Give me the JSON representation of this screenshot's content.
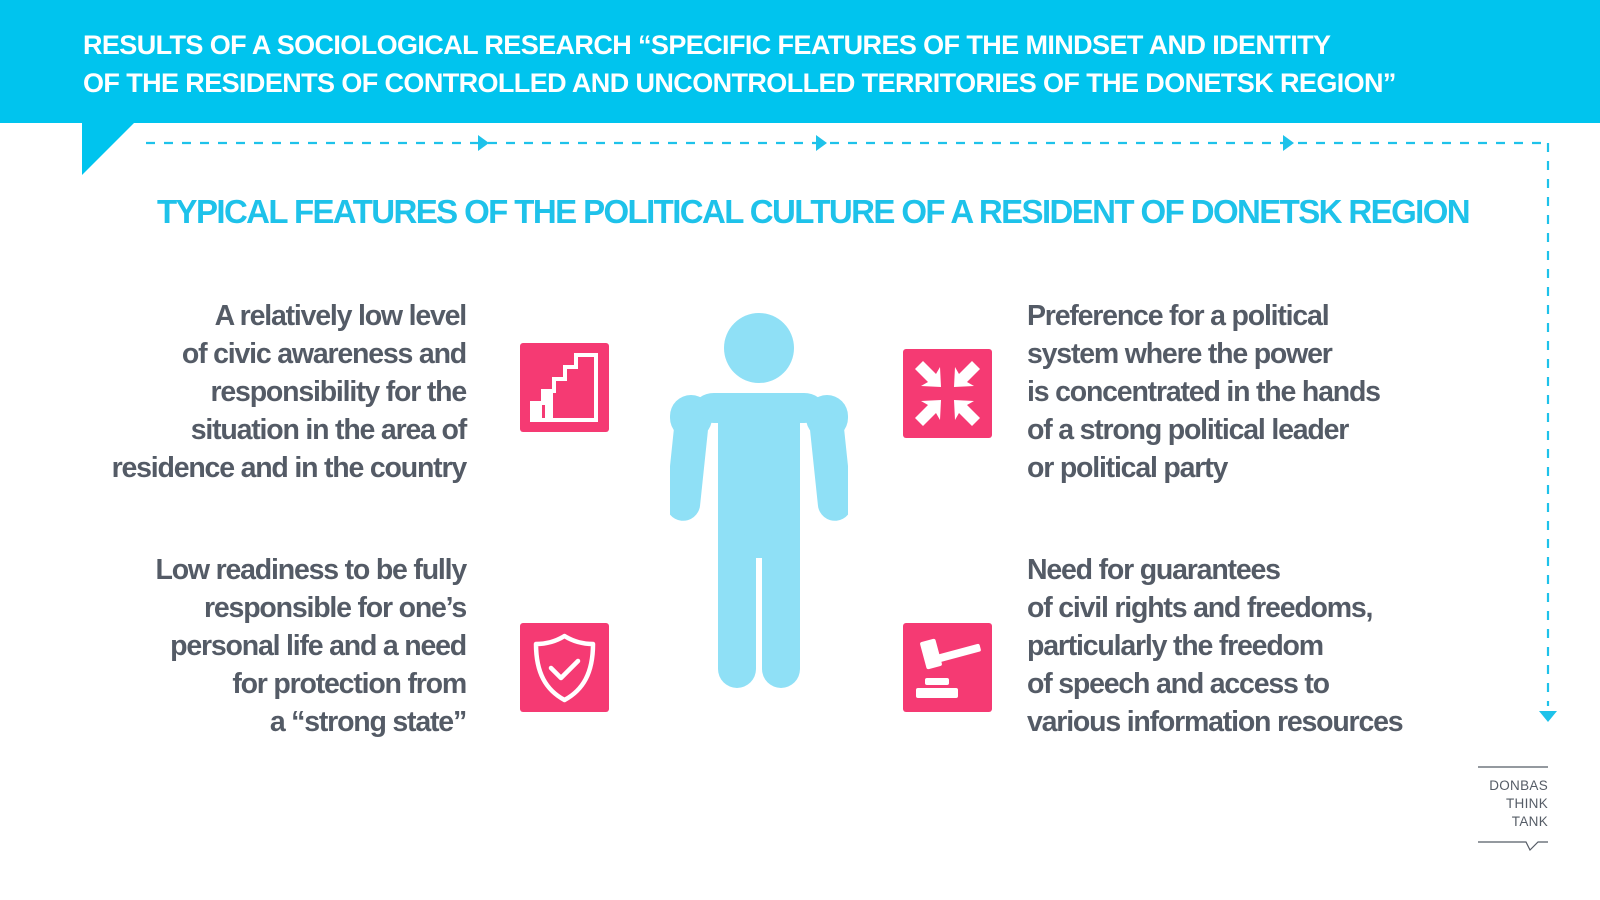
{
  "header": {
    "title_lines": [
      "RESULTS OF A SOCIOLOGICAL RESEARCH “SPECIFIC FEATURES OF THE MINDSET AND IDENTITY",
      "OF THE RESIDENTS OF CONTROLLED AND UNCONTROLLED TERRITORIES OF THE DONETSK REGION”"
    ]
  },
  "section_title": "TYPICAL FEATURES OF THE POLITICAL CULTURE OF A RESIDENT OF DONETSK REGION",
  "features": [
    {
      "lines": [
        "A relatively low level",
        "of civic awareness and",
        "responsibility for the",
        "situation in the area of",
        "residence and in the country"
      ],
      "icon": "rising-steps-icon"
    },
    {
      "lines": [
        "Preference for a political",
        "system where the power",
        "is concentrated in the hands",
        "of a strong political leader",
        "or political party"
      ],
      "icon": "converging-arrows-icon"
    },
    {
      "lines": [
        "Low readiness to be fully",
        "responsible for one’s",
        "personal life and a need",
        "for protection from",
        "a “strong state”"
      ],
      "icon": "shield-check-icon"
    },
    {
      "lines": [
        "Need for guarantees",
        "of civil rights and freedoms,",
        "particularly the freedom",
        "of speech and access to",
        "various information resources"
      ],
      "icon": "gavel-icon"
    }
  ],
  "central_figure_icon": "person-icon",
  "logo": {
    "lines": [
      "DONBAS",
      "THINK",
      "TANK"
    ]
  },
  "colors": {
    "banner": "#00c4ee",
    "accent_title": "#1ec2ea",
    "icon_background": "#f53a73",
    "figure": "#8fe0f6",
    "body_text": "#545b66"
  }
}
